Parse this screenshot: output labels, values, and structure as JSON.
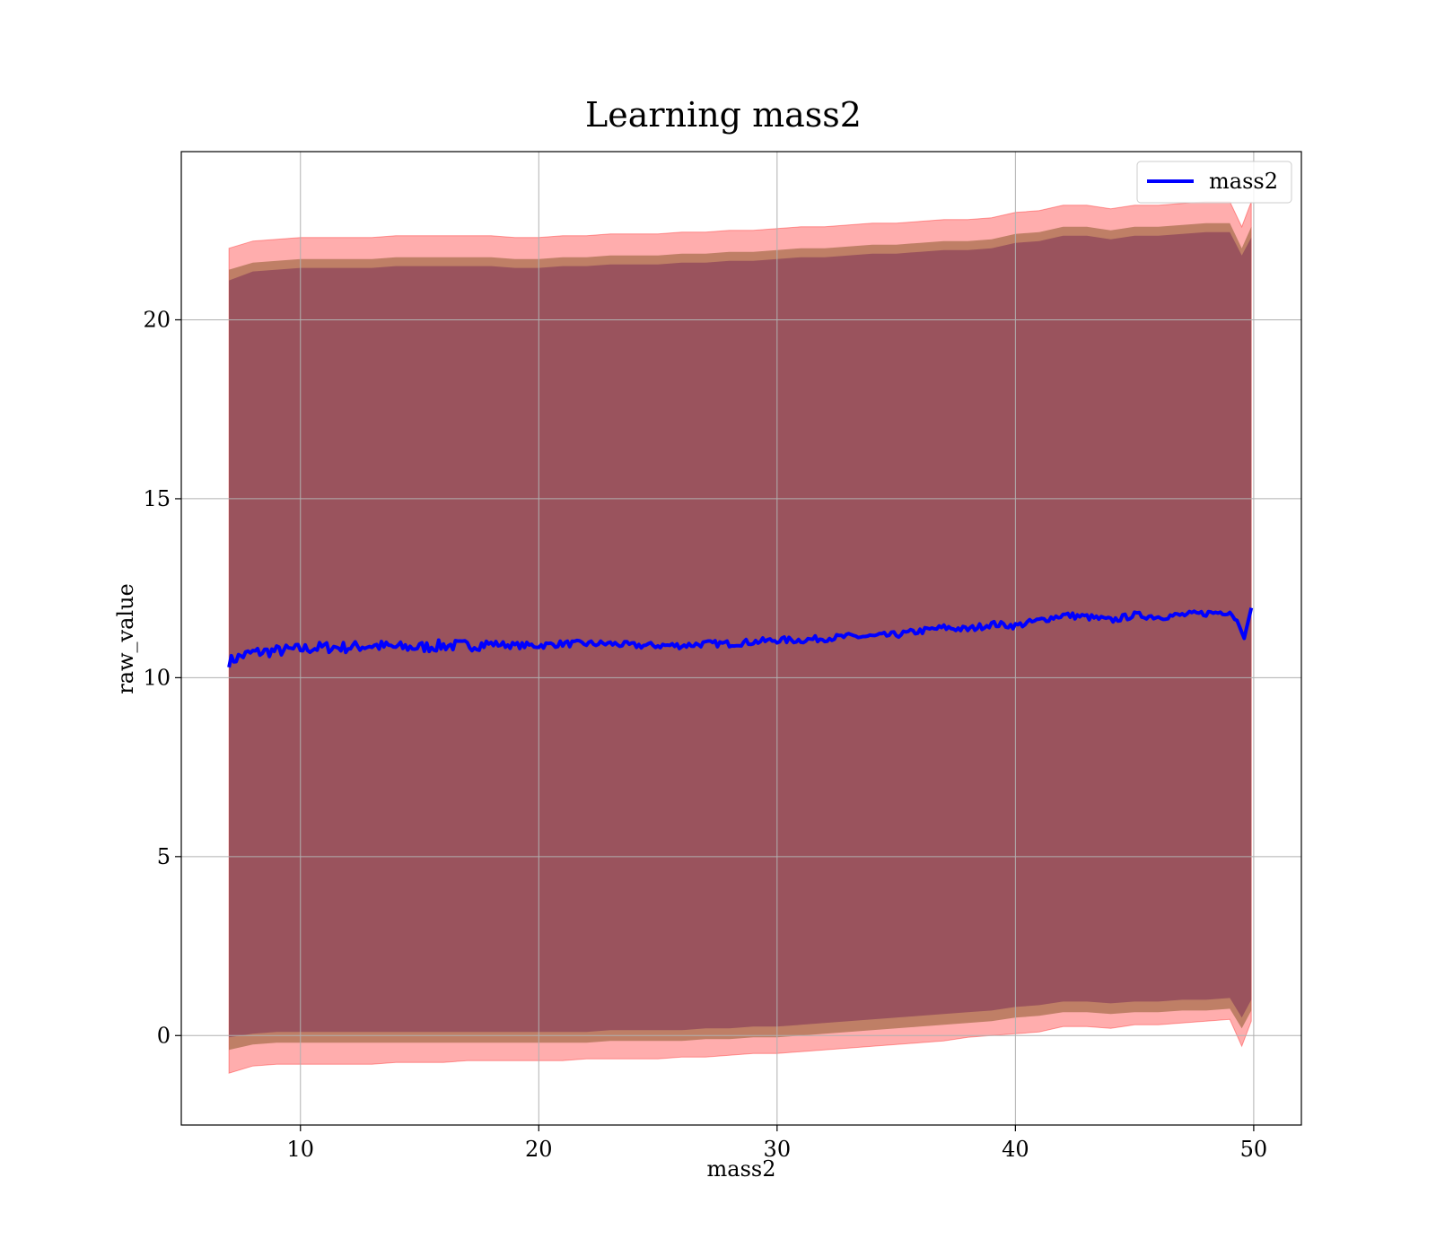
{
  "chart_data": {
    "type": "line",
    "title": "Learning mass2",
    "xlabel": "mass2",
    "ylabel": "raw_value",
    "xlim": [
      5,
      52
    ],
    "ylim": [
      -2.5,
      24.7
    ],
    "xticks": [
      10,
      20,
      30,
      40,
      50
    ],
    "yticks": [
      0,
      5,
      10,
      15,
      20
    ],
    "xtick_labels": [
      "10",
      "20",
      "30",
      "40",
      "50"
    ],
    "ytick_labels": [
      "0",
      "5",
      "10",
      "15",
      "20"
    ],
    "grid": true,
    "legend": {
      "placement": "top-right",
      "entries": [
        "mass2"
      ]
    },
    "colors": {
      "mean_line": "#0000ff",
      "outer_band": "#ff0000",
      "middle_band": "#8b5a2b",
      "inner_band": "#7b2f55",
      "grid": "#b0b0b0"
    },
    "series": [
      {
        "name": "mass2",
        "x": [
          7,
          7.5,
          8,
          9,
          10,
          11,
          12,
          13,
          14,
          15,
          16,
          17,
          18,
          19,
          20,
          21,
          22,
          23,
          24,
          25,
          26,
          27,
          28,
          29,
          30,
          31,
          32,
          33,
          34,
          35,
          36,
          37,
          38,
          39,
          40,
          41,
          42,
          43,
          44,
          45,
          46,
          47,
          48,
          49,
          49.3,
          49.6,
          49.9
        ],
        "y": [
          10.45,
          10.6,
          10.7,
          10.75,
          10.8,
          10.85,
          10.85,
          10.9,
          10.85,
          10.85,
          10.9,
          10.9,
          10.95,
          10.9,
          10.9,
          10.95,
          10.95,
          10.95,
          10.9,
          10.9,
          10.9,
          10.95,
          10.95,
          11.0,
          11.05,
          11.05,
          11.1,
          11.15,
          11.15,
          11.2,
          11.3,
          11.4,
          11.35,
          11.5,
          11.45,
          11.6,
          11.75,
          11.7,
          11.6,
          11.75,
          11.7,
          11.75,
          11.8,
          11.85,
          11.6,
          11.1,
          11.95
        ]
      }
    ],
    "bands": {
      "x": [
        7,
        8,
        9,
        10,
        11,
        12,
        13,
        14,
        15,
        16,
        17,
        18,
        19,
        20,
        21,
        22,
        23,
        24,
        25,
        26,
        27,
        28,
        29,
        30,
        31,
        32,
        33,
        34,
        35,
        36,
        37,
        38,
        39,
        40,
        41,
        42,
        43,
        44,
        45,
        46,
        47,
        48,
        49,
        49.5,
        49.9
      ],
      "outer_upper": [
        22.0,
        22.2,
        22.25,
        22.3,
        22.3,
        22.3,
        22.3,
        22.35,
        22.35,
        22.35,
        22.35,
        22.35,
        22.3,
        22.3,
        22.35,
        22.35,
        22.4,
        22.4,
        22.4,
        22.45,
        22.45,
        22.5,
        22.5,
        22.55,
        22.6,
        22.6,
        22.65,
        22.7,
        22.7,
        22.75,
        22.8,
        22.8,
        22.85,
        23.0,
        23.05,
        23.2,
        23.2,
        23.1,
        23.2,
        23.2,
        23.25,
        23.3,
        23.3,
        22.6,
        23.3
      ],
      "middle_upper": [
        21.4,
        21.6,
        21.65,
        21.7,
        21.7,
        21.7,
        21.7,
        21.75,
        21.75,
        21.75,
        21.75,
        21.75,
        21.7,
        21.7,
        21.75,
        21.75,
        21.8,
        21.8,
        21.8,
        21.85,
        21.85,
        21.9,
        21.9,
        21.95,
        22.0,
        22.0,
        22.05,
        22.1,
        22.1,
        22.15,
        22.2,
        22.2,
        22.25,
        22.4,
        22.45,
        22.6,
        22.6,
        22.5,
        22.6,
        22.6,
        22.65,
        22.7,
        22.7,
        22.0,
        22.6
      ],
      "inner_upper": [
        21.1,
        21.35,
        21.4,
        21.45,
        21.45,
        21.45,
        21.45,
        21.5,
        21.5,
        21.5,
        21.5,
        21.5,
        21.45,
        21.45,
        21.5,
        21.5,
        21.55,
        21.55,
        21.55,
        21.6,
        21.6,
        21.65,
        21.65,
        21.7,
        21.75,
        21.75,
        21.8,
        21.85,
        21.85,
        21.9,
        21.95,
        21.95,
        22.0,
        22.15,
        22.2,
        22.35,
        22.35,
        22.25,
        22.35,
        22.35,
        22.4,
        22.45,
        22.45,
        21.8,
        22.3
      ],
      "inner_lower": [
        -0.05,
        0.05,
        0.1,
        0.1,
        0.1,
        0.1,
        0.1,
        0.1,
        0.1,
        0.1,
        0.1,
        0.1,
        0.1,
        0.1,
        0.1,
        0.1,
        0.15,
        0.15,
        0.15,
        0.15,
        0.2,
        0.2,
        0.25,
        0.25,
        0.3,
        0.35,
        0.4,
        0.45,
        0.5,
        0.55,
        0.6,
        0.65,
        0.7,
        0.8,
        0.85,
        0.95,
        0.95,
        0.9,
        0.95,
        0.95,
        1.0,
        1.0,
        1.05,
        0.5,
        1.0
      ],
      "middle_lower": [
        -0.4,
        -0.25,
        -0.2,
        -0.2,
        -0.2,
        -0.2,
        -0.2,
        -0.2,
        -0.2,
        -0.2,
        -0.2,
        -0.2,
        -0.2,
        -0.2,
        -0.2,
        -0.2,
        -0.15,
        -0.15,
        -0.15,
        -0.15,
        -0.1,
        -0.1,
        -0.05,
        -0.05,
        0.0,
        0.05,
        0.1,
        0.15,
        0.2,
        0.25,
        0.3,
        0.35,
        0.4,
        0.5,
        0.55,
        0.65,
        0.65,
        0.6,
        0.65,
        0.65,
        0.7,
        0.7,
        0.75,
        0.2,
        0.7
      ],
      "outer_lower": [
        -1.05,
        -0.85,
        -0.8,
        -0.8,
        -0.8,
        -0.8,
        -0.8,
        -0.75,
        -0.75,
        -0.75,
        -0.7,
        -0.7,
        -0.7,
        -0.7,
        -0.7,
        -0.65,
        -0.65,
        -0.65,
        -0.65,
        -0.6,
        -0.6,
        -0.55,
        -0.5,
        -0.5,
        -0.45,
        -0.4,
        -0.35,
        -0.3,
        -0.25,
        -0.2,
        -0.15,
        -0.05,
        0.0,
        0.05,
        0.1,
        0.25,
        0.25,
        0.2,
        0.3,
        0.3,
        0.35,
        0.4,
        0.45,
        -0.3,
        0.4
      ]
    }
  }
}
